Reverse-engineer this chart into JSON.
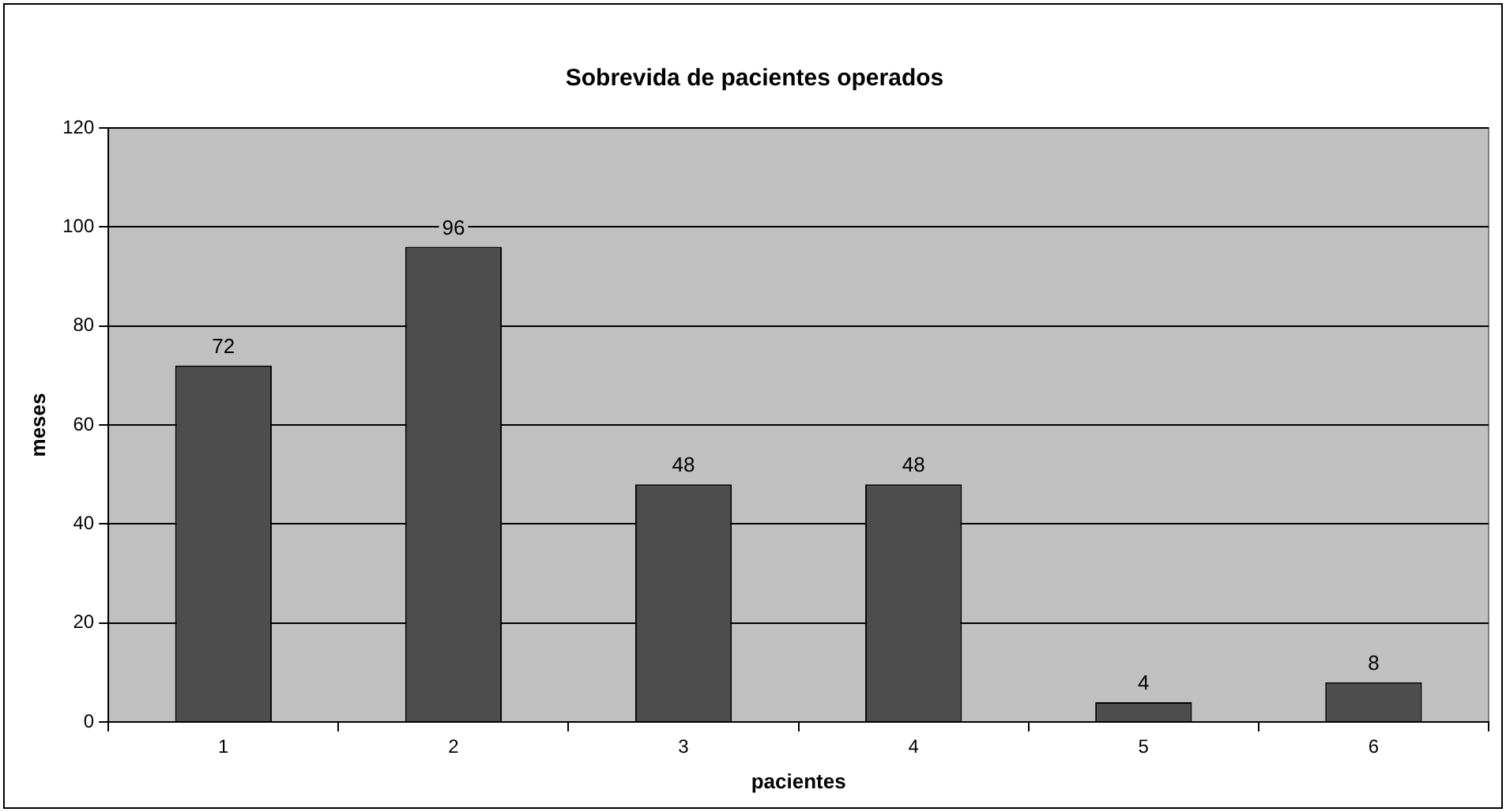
{
  "chart_data": {
    "type": "bar",
    "title": "Sobrevida de pacientes operados",
    "xlabel": "pacientes",
    "ylabel": "meses",
    "categories": [
      "1",
      "2",
      "3",
      "4",
      "5",
      "6"
    ],
    "values": [
      72,
      96,
      48,
      48,
      4,
      8
    ],
    "color": "#4d4d4d",
    "ylim": [
      0,
      120
    ],
    "yticks": [
      0,
      20,
      40,
      60,
      80,
      100,
      120
    ],
    "grid": "y",
    "data_labels": true,
    "legend": false
  }
}
